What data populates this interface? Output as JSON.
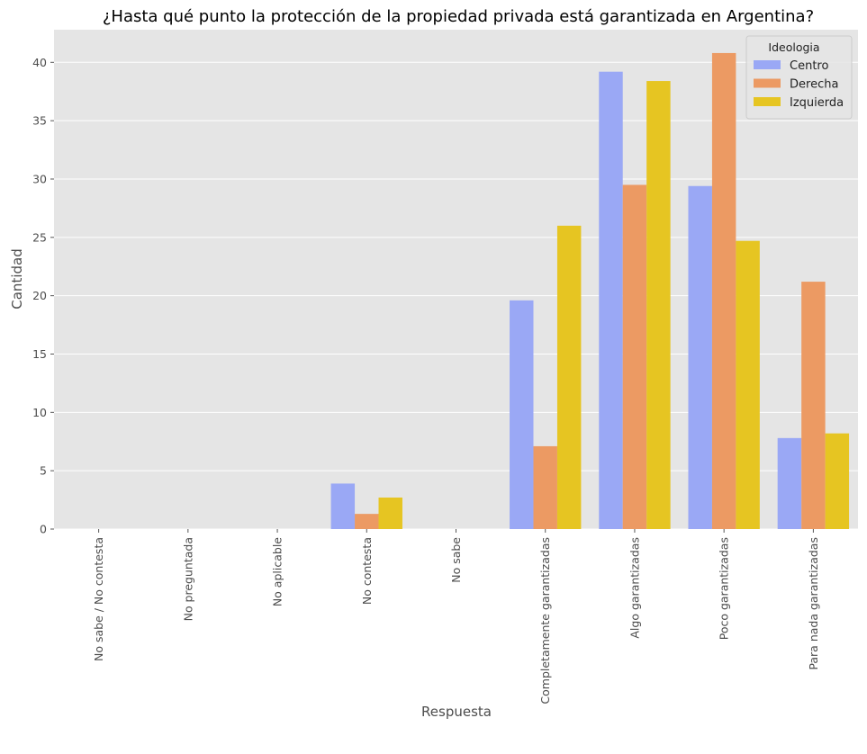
{
  "chart_data": {
    "type": "bar",
    "title": "¿Hasta qué punto la protección de la propiedad privada está garantizada en Argentina?",
    "xlabel": "Respuesta",
    "ylabel": "Cantidad",
    "ylim": [
      0,
      42.8
    ],
    "yticks": [
      0,
      5,
      10,
      15,
      20,
      25,
      30,
      35,
      40
    ],
    "grid": true,
    "legend_title": "Ideologia",
    "legend_position": "top-right",
    "categories": [
      "No sabe / No contesta",
      "No preguntada",
      "No aplicable",
      "No contesta",
      "No sabe",
      "Completamente garantizadas",
      "Algo garantizadas",
      "Poco garantizadas",
      "Para nada garantizadas"
    ],
    "series": [
      {
        "name": "Centro",
        "color": "#9aa8f5",
        "values": [
          0,
          0,
          0,
          3.9,
          0,
          19.6,
          39.2,
          29.4,
          7.8
        ]
      },
      {
        "name": "Derecha",
        "color": "#ec9a63",
        "values": [
          0,
          0,
          0,
          1.3,
          0,
          7.1,
          29.5,
          40.8,
          21.2
        ]
      },
      {
        "name": "Izquierda",
        "color": "#e6c522",
        "values": [
          0,
          0,
          0,
          2.7,
          0,
          26.0,
          38.4,
          24.7,
          8.2
        ]
      }
    ]
  }
}
